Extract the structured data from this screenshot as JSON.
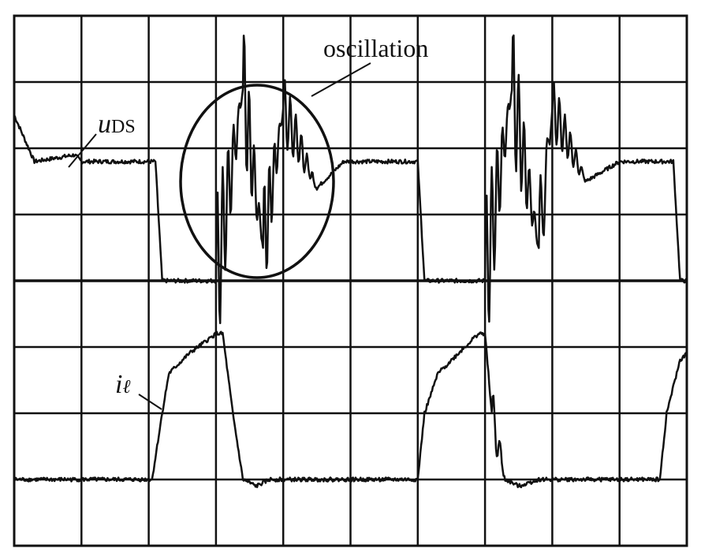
{
  "annotation": {
    "text": "oscillation"
  },
  "labels": {
    "u_symbol": "u",
    "u_subscript": "DS",
    "i_symbol": "i",
    "i_subscript": "ℓ"
  },
  "colors": {
    "trace": "#111111",
    "grid": "#111111",
    "background": "#ffffff"
  },
  "chart_data": {
    "type": "line",
    "title": "",
    "xlabel": "",
    "ylabel": "",
    "grid": true,
    "x_divisions": 10,
    "y_divisions": 8,
    "xlim": [
      0,
      10
    ],
    "ylim": [
      0,
      8
    ],
    "series": [
      {
        "name": "uDS",
        "x": [
          0.0,
          0.3,
          0.9,
          1.0,
          2.0,
          2.1,
          2.2,
          2.8,
          3.0,
          3.4,
          3.7,
          4.0,
          4.5,
          4.9,
          5.0,
          5.9,
          6.0,
          6.1,
          6.8,
          7.0,
          7.4,
          7.8,
          8.0,
          8.5,
          9.0,
          9.7,
          9.8,
          9.9,
          10.0
        ],
        "y": [
          6.5,
          5.8,
          5.9,
          5.8,
          5.8,
          5.8,
          4.0,
          4.0,
          4.0,
          6.9,
          4.5,
          6.6,
          5.4,
          5.8,
          5.8,
          5.8,
          5.8,
          4.0,
          4.0,
          4.0,
          6.9,
          4.5,
          6.6,
          5.5,
          5.8,
          5.8,
          5.8,
          4.0,
          4.0
        ]
      },
      {
        "name": "iℓ",
        "x": [
          0.0,
          1.0,
          2.0,
          2.05,
          2.2,
          2.3,
          2.6,
          3.0,
          3.1,
          3.25,
          3.4,
          3.6,
          3.8,
          4.0,
          5.0,
          5.9,
          6.0,
          6.1,
          6.3,
          6.6,
          6.9,
          7.0,
          7.1,
          7.3,
          7.5,
          7.8,
          8.0,
          9.0,
          9.6,
          9.7,
          9.9,
          10.0
        ],
        "y": [
          1.0,
          1.0,
          1.0,
          1.0,
          2.0,
          2.6,
          2.9,
          3.2,
          3.2,
          2.0,
          1.0,
          0.9,
          1.0,
          1.0,
          1.0,
          1.0,
          1.0,
          2.0,
          2.6,
          2.9,
          3.2,
          3.2,
          2.0,
          1.0,
          0.9,
          1.0,
          1.0,
          1.0,
          1.0,
          2.0,
          2.8,
          2.9
        ]
      }
    ]
  }
}
